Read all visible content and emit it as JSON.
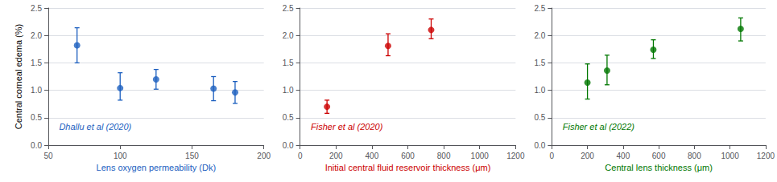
{
  "chart_data": [
    {
      "type": "scatter",
      "color": "#1C5FBF",
      "x": [
        70,
        100,
        125,
        165,
        180
      ],
      "values": [
        1.82,
        1.04,
        1.2,
        1.03,
        0.96
      ],
      "yerr_low": [
        0.32,
        0.22,
        0.18,
        0.22,
        0.2
      ],
      "yerr_high": [
        0.32,
        0.28,
        0.18,
        0.22,
        0.2
      ],
      "xlabel": "Lens oxygen permeability (Dk)",
      "ylabel": "Central corneal edema (%)",
      "annotation": "Dhallu et al (2020)",
      "xlim": [
        50,
        200
      ],
      "xticks": [
        50,
        100,
        150,
        200
      ],
      "ylim": [
        0.0,
        2.5
      ],
      "yticks": [
        {
          "value": 0.0,
          "label": "0.0"
        },
        0.5,
        {
          "value": 1.0,
          "label": "1.0"
        },
        1.5,
        {
          "value": 2.0,
          "label": "2.0"
        },
        2.5
      ],
      "grid": true
    },
    {
      "type": "scatter",
      "color": "#CC0000",
      "x": [
        150,
        490,
        730
      ],
      "values": [
        0.7,
        1.81,
        2.1
      ],
      "yerr_low": [
        0.12,
        0.18,
        0.16
      ],
      "yerr_high": [
        0.12,
        0.22,
        0.2
      ],
      "xlabel": "Initial central fluid reservoir thickness (μm)",
      "annotation": "Fisher et al (2020)",
      "xlim": [
        0,
        1200
      ],
      "xticks": [
        0,
        200,
        400,
        600,
        800,
        1000,
        1200
      ],
      "ylim": [
        0.0,
        2.5
      ],
      "yticks": [
        {
          "value": 0.0,
          "label": "0.0"
        },
        0.5,
        {
          "value": 1.0,
          "label": "1.0"
        },
        1.5,
        {
          "value": 2.0,
          "label": "2.0"
        },
        2.5
      ],
      "grid": true
    },
    {
      "type": "scatter",
      "color": "#007700",
      "x": [
        200,
        310,
        570,
        1060
      ],
      "values": [
        1.14,
        1.36,
        1.74,
        2.12
      ],
      "yerr_low": [
        0.3,
        0.26,
        0.16,
        0.22
      ],
      "yerr_high": [
        0.34,
        0.28,
        0.18,
        0.2
      ],
      "xlabel": "Central lens thickness (μm)",
      "annotation": "Fisher et al (2022)",
      "xlim": [
        0,
        1200
      ],
      "xticks": [
        0,
        200,
        400,
        600,
        800,
        1000,
        1200
      ],
      "ylim": [
        0.0,
        2.5
      ],
      "yticks": [
        {
          "value": 0.0,
          "label": "0.0"
        },
        0.5,
        {
          "value": 1.0,
          "label": "1.0"
        },
        1.5,
        {
          "value": 2.0,
          "label": "2.0"
        },
        2.5
      ],
      "grid": true
    }
  ]
}
